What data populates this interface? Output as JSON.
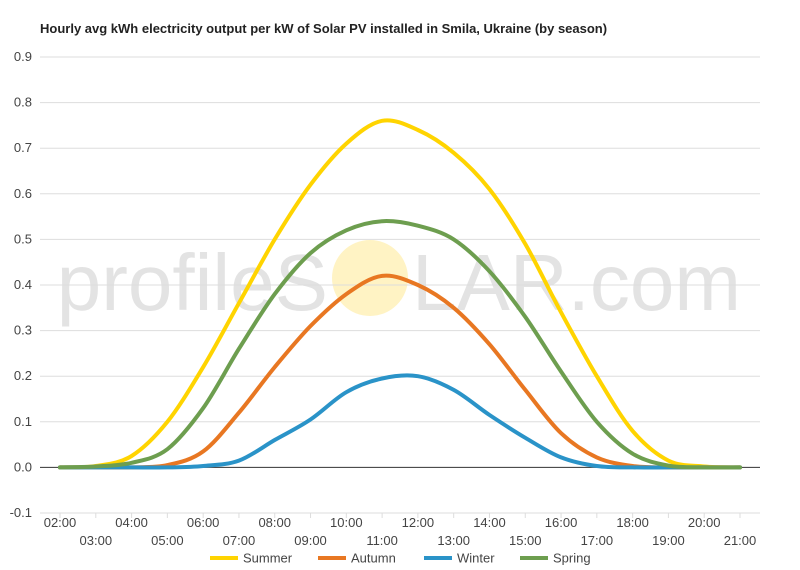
{
  "chart_data": {
    "type": "line",
    "title": "Hourly avg kWh electricity output per kW of Solar PV installed in Smila, Ukraine (by season)",
    "xlabel": "",
    "ylabel": "",
    "ylim": [
      -0.1,
      0.9
    ],
    "yticks": [
      "-0.1",
      "0.0",
      "0.1",
      "0.2",
      "0.3",
      "0.4",
      "0.5",
      "0.6",
      "0.7",
      "0.8",
      "0.9"
    ],
    "x": [
      "02:00",
      "03:00",
      "04:00",
      "05:00",
      "06:00",
      "07:00",
      "08:00",
      "09:00",
      "10:00",
      "11:00",
      "12:00",
      "13:00",
      "14:00",
      "15:00",
      "16:00",
      "17:00",
      "18:00",
      "19:00",
      "20:00",
      "21:00"
    ],
    "grid": true,
    "legend": "bottom",
    "series": [
      {
        "name": "Summer",
        "color": "#ffd400",
        "values": [
          0.0,
          0.003,
          0.025,
          0.1,
          0.22,
          0.36,
          0.5,
          0.62,
          0.71,
          0.76,
          0.74,
          0.69,
          0.61,
          0.49,
          0.34,
          0.2,
          0.08,
          0.015,
          0.002,
          0.0
        ]
      },
      {
        "name": "Autumn",
        "color": "#e87722",
        "values": [
          0.0,
          0.0,
          0.0,
          0.005,
          0.035,
          0.12,
          0.22,
          0.31,
          0.38,
          0.42,
          0.4,
          0.35,
          0.27,
          0.17,
          0.075,
          0.022,
          0.003,
          0.0,
          0.0,
          0.0
        ]
      },
      {
        "name": "Winter",
        "color": "#2a93c8",
        "values": [
          0.0,
          0.0,
          0.0,
          0.0,
          0.003,
          0.015,
          0.06,
          0.105,
          0.165,
          0.195,
          0.2,
          0.17,
          0.115,
          0.065,
          0.022,
          0.003,
          0.0,
          0.0,
          0.0,
          0.0
        ]
      },
      {
        "name": "Spring",
        "color": "#6d9e4f",
        "values": [
          0.0,
          0.002,
          0.01,
          0.04,
          0.13,
          0.26,
          0.38,
          0.47,
          0.52,
          0.54,
          0.53,
          0.5,
          0.43,
          0.33,
          0.21,
          0.1,
          0.03,
          0.004,
          0.0,
          0.0
        ]
      }
    ]
  },
  "watermark": {
    "text_left": "profileS",
    "text_right": "LAR.com",
    "sun_color": "#fff3c4"
  }
}
